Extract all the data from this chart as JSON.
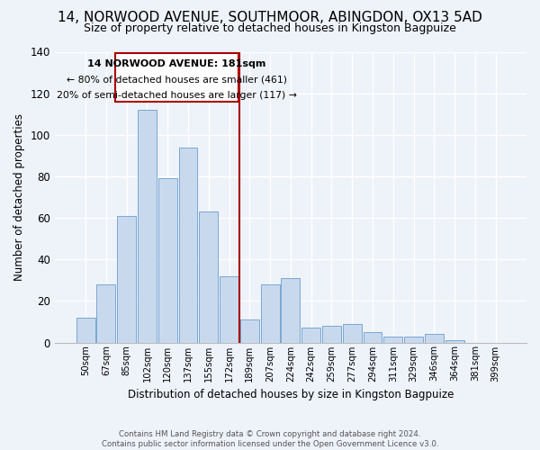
{
  "title": "14, NORWOOD AVENUE, SOUTHMOOR, ABINGDON, OX13 5AD",
  "subtitle": "Size of property relative to detached houses in Kingston Bagpuize",
  "xlabel": "Distribution of detached houses by size in Kingston Bagpuize",
  "ylabel": "Number of detached properties",
  "footer_line1": "Contains HM Land Registry data © Crown copyright and database right 2024.",
  "footer_line2": "Contains public sector information licensed under the Open Government Licence v3.0.",
  "bar_labels": [
    "50sqm",
    "67sqm",
    "85sqm",
    "102sqm",
    "120sqm",
    "137sqm",
    "155sqm",
    "172sqm",
    "189sqm",
    "207sqm",
    "224sqm",
    "242sqm",
    "259sqm",
    "277sqm",
    "294sqm",
    "311sqm",
    "329sqm",
    "346sqm",
    "364sqm",
    "381sqm",
    "399sqm"
  ],
  "bar_values": [
    12,
    28,
    61,
    112,
    79,
    94,
    63,
    32,
    11,
    28,
    31,
    7,
    8,
    9,
    5,
    3,
    3,
    4,
    1,
    0,
    0
  ],
  "bar_color": "#c8d9ee",
  "bar_edge_color": "#7aa8d2",
  "ylim": [
    0,
    140
  ],
  "yticks": [
    0,
    20,
    40,
    60,
    80,
    100,
    120,
    140
  ],
  "annotation_box_text_line1": "14 NORWOOD AVENUE: 181sqm",
  "annotation_box_text_line2": "← 80% of detached houses are smaller (461)",
  "annotation_box_text_line3": "20% of semi-detached houses are larger (117) →",
  "annotation_box_color": "#ffffff",
  "annotation_box_edge_color": "#aa0000",
  "annotation_line_color": "#aa0000",
  "background_color": "#eef2f9",
  "grid_color": "#ffffff",
  "title_fontsize": 11,
  "subtitle_fontsize": 9
}
